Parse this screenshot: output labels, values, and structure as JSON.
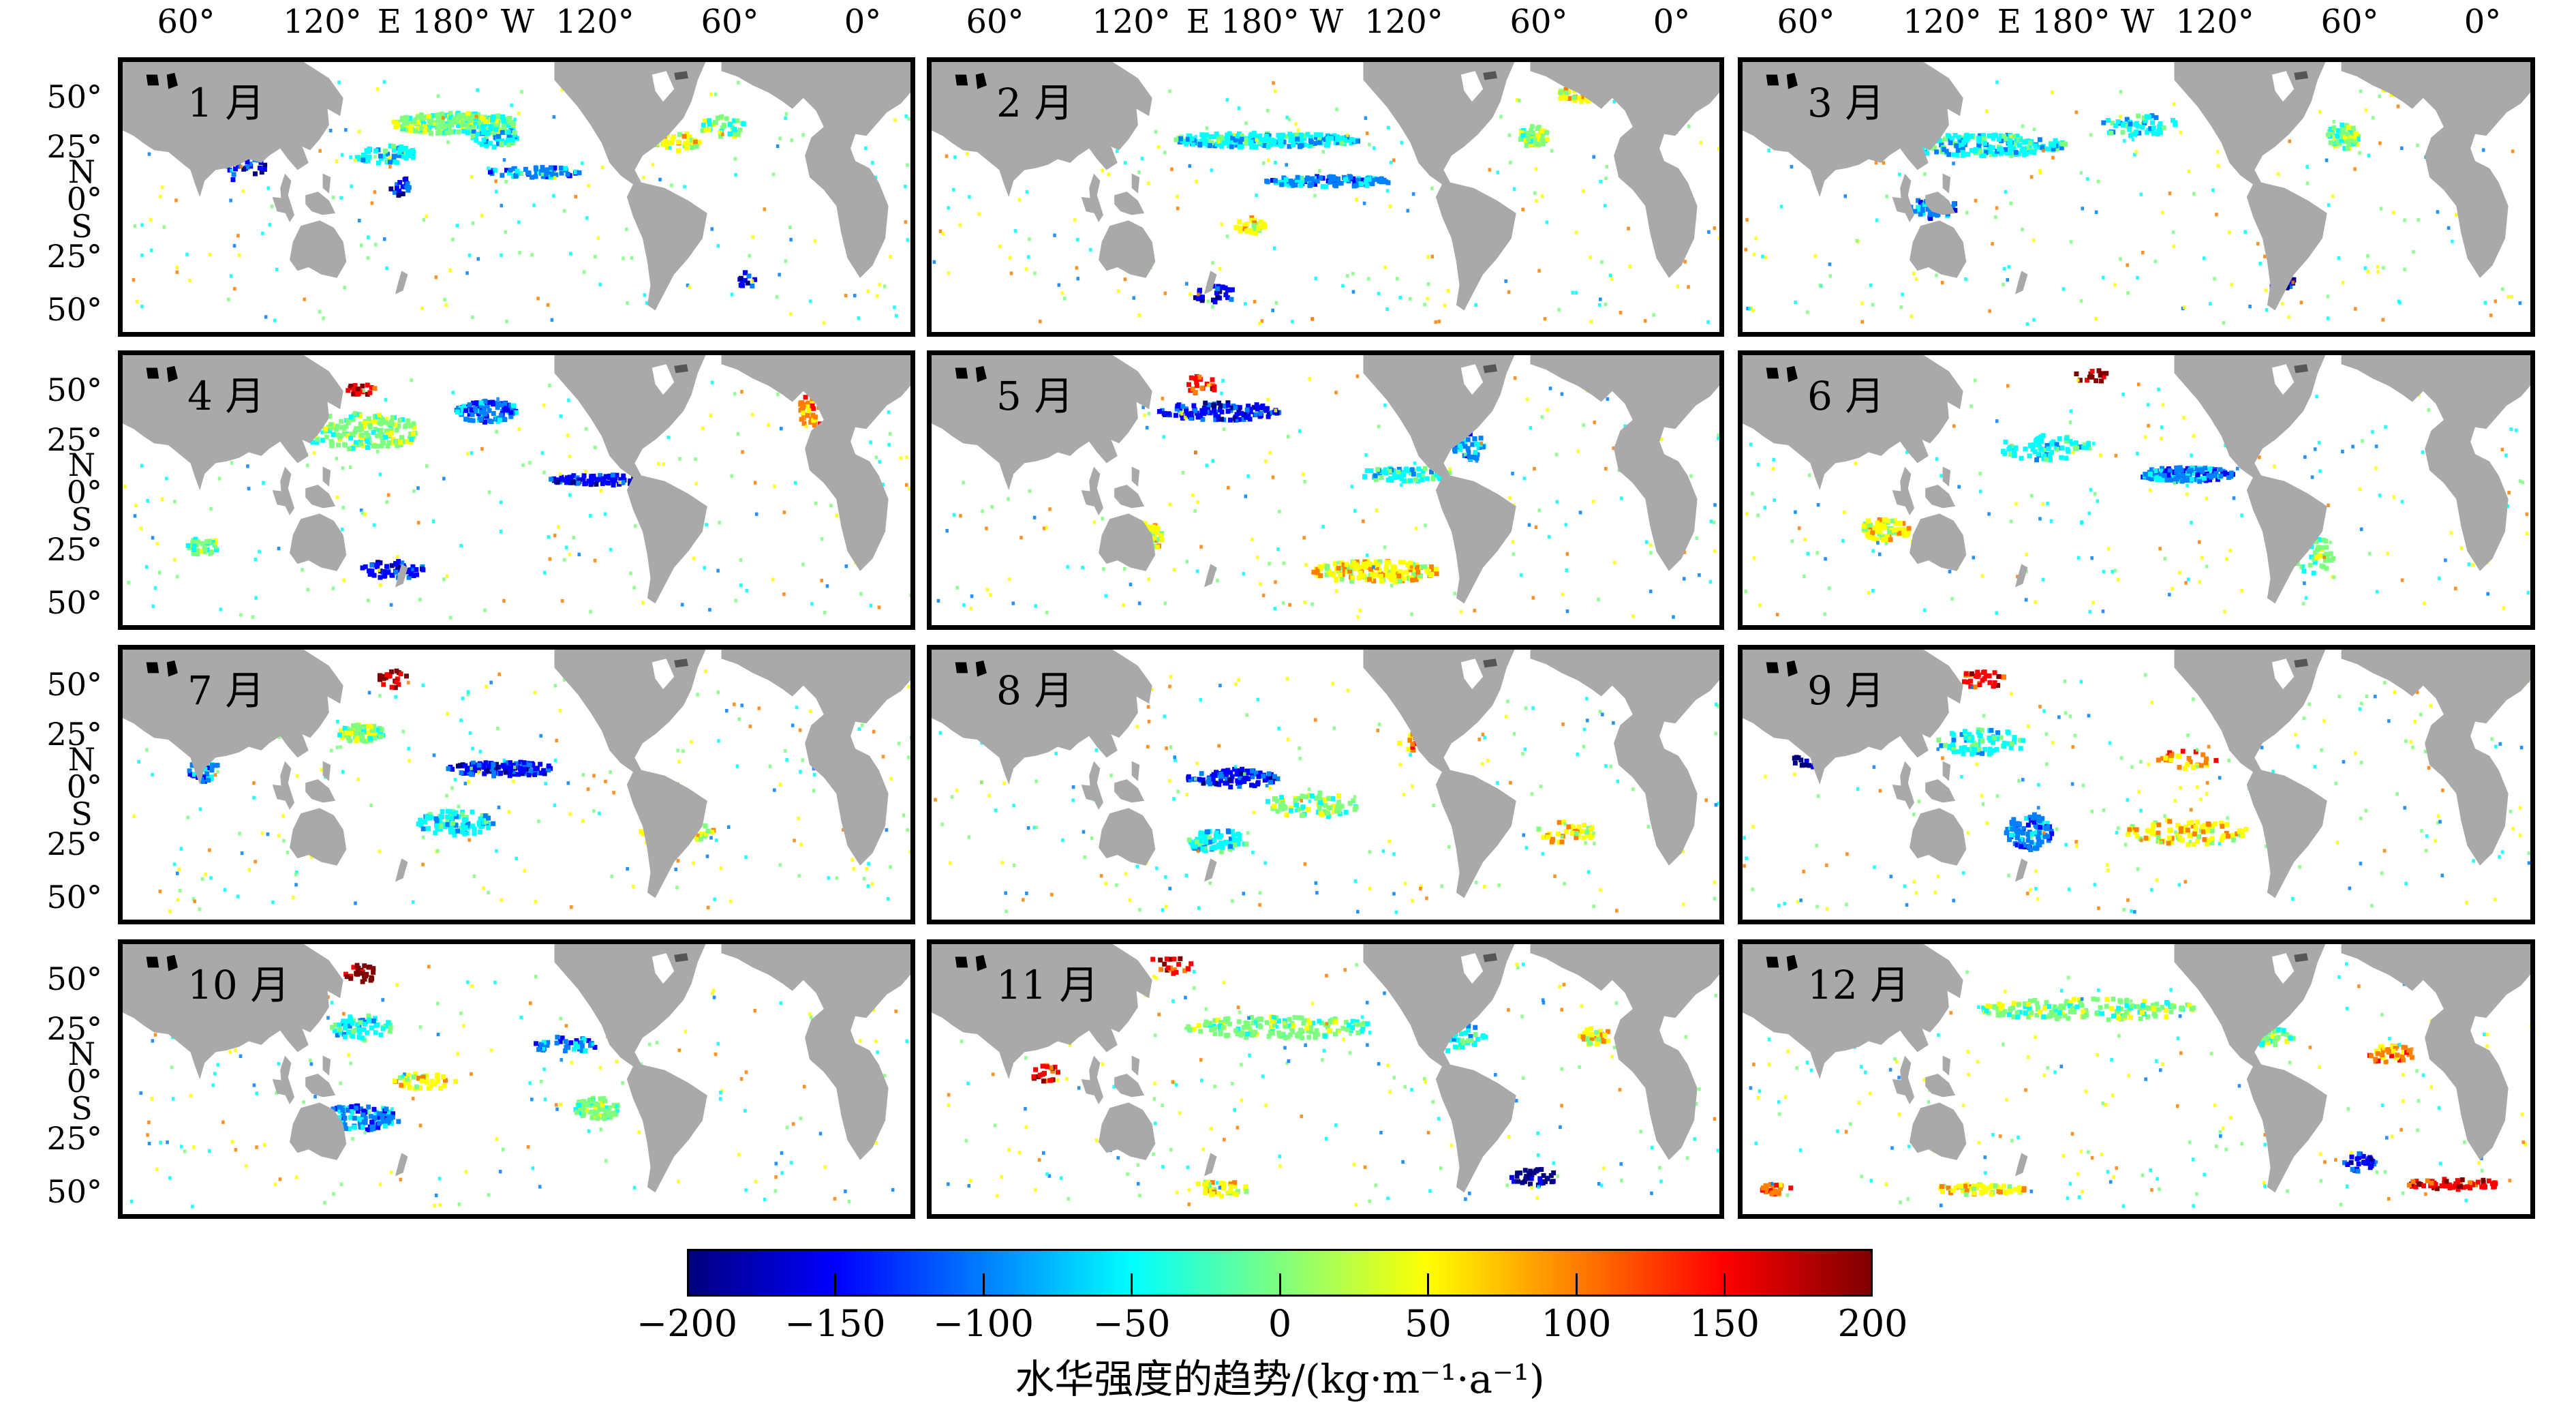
{
  "top_axis_labels": [
    "60°",
    "120°",
    "E 180° W",
    "120°",
    "60°",
    "0°"
  ],
  "lat_labels": [
    "50°",
    "25°",
    "N",
    "0°",
    "S",
    "25°",
    "50°"
  ],
  "months": [
    "1 月",
    "2 月",
    "3 月",
    "4 月",
    "5 月",
    "6 月",
    "7 月",
    "8 月",
    "9 月",
    "10 月",
    "11 月",
    "12 月"
  ],
  "colorbar": {
    "min": -200,
    "max": 200,
    "ticks": [
      "−200",
      "−150",
      "−100",
      "−50",
      "0",
      "50",
      "100",
      "150",
      "200"
    ],
    "title": "水华强度的趋势/(kg·m⁻¹·a⁻¹)",
    "colors": [
      "#00007f",
      "#0000ff",
      "#007fff",
      "#00ffff",
      "#7fff7f",
      "#ffff00",
      "#ff7f00",
      "#ff0000",
      "#7f0000"
    ]
  },
  "colors": {
    "land": "#a9a9a9",
    "ocean": "#ffffff",
    "frame": "#000000"
  }
}
